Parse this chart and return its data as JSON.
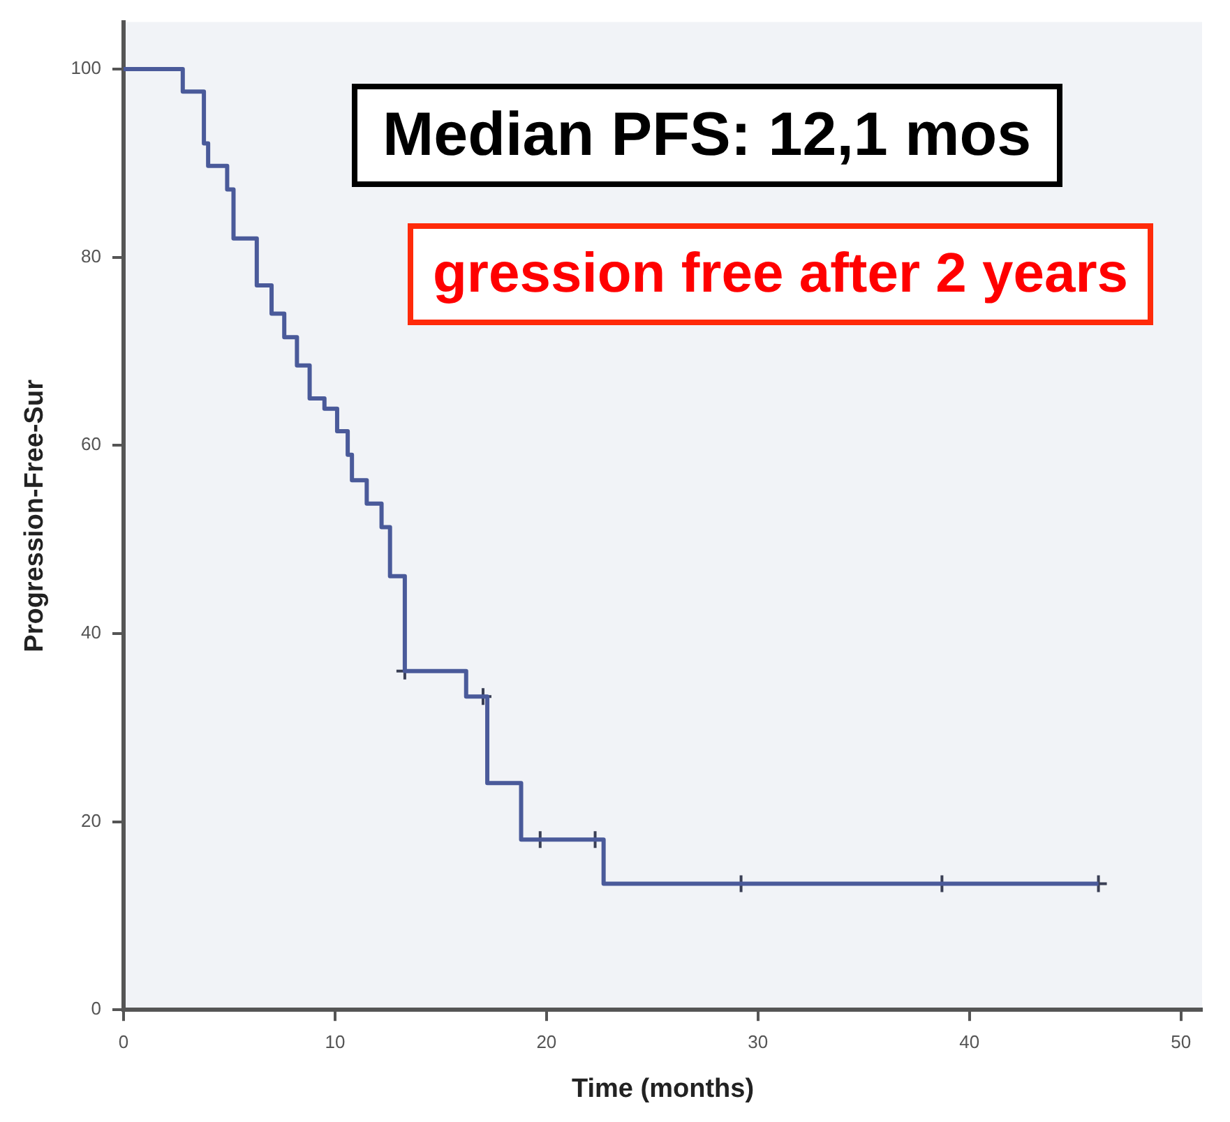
{
  "chart_data": {
    "type": "step",
    "ylabel": "Progression-Free-Sur",
    "xlabel": "Time (months)",
    "annotations": [
      "Median PFS: 12,1 mos",
      "gression free after 2 years"
    ],
    "series": [
      {
        "color": "#4a5a9a",
        "x": [
          0,
          2.8,
          3.8,
          4.0,
          4.9,
          5.2,
          6.3,
          7.0,
          7.6,
          8.2,
          8.8,
          9.5,
          10.1,
          10.6,
          10.8,
          11.5,
          12.2,
          12.6,
          13.3,
          16.2,
          17.2,
          18.8,
          22.7,
          46.1
        ],
        "values": [
          100,
          97.6,
          92.1,
          89.7,
          87.2,
          82.0,
          77,
          74,
          71.5,
          68.5,
          65,
          63.9,
          61.5,
          59.0,
          56.3,
          53.8,
          51.3,
          46.1,
          36.0,
          33.3,
          24.1,
          18.1,
          13.4,
          13.4
        ]
      },
      {
        "type": "scatter",
        "color": "#3a3f55",
        "marker": "cross",
        "x": [
          13.3,
          17.0,
          19.7,
          22.3,
          29.2,
          38.7,
          46.1
        ],
        "values": [
          36.0,
          33.3,
          18.1,
          18.1,
          13.4,
          13.4,
          13.4
        ]
      }
    ],
    "xlim": [
      0,
      51
    ],
    "ylim": [
      0,
      105
    ],
    "xticks": [
      0,
      10,
      20,
      30,
      40,
      50
    ],
    "yticks": [
      0,
      20,
      40,
      60,
      80,
      100
    ],
    "grid": false,
    "legend": false
  }
}
